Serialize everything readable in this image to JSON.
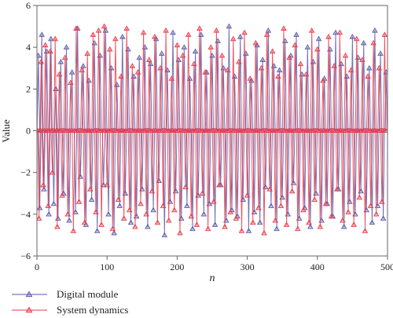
{
  "chart_data": {
    "type": "line",
    "xlabel": "n",
    "ylabel": "Value",
    "xlim": [
      0,
      500
    ],
    "ylim": [
      -6,
      6
    ],
    "x_ticks": [
      0,
      100,
      200,
      300,
      400,
      500
    ],
    "y_ticks": [
      -6,
      -4,
      -2,
      0,
      2,
      4,
      6
    ],
    "grid": false,
    "legend_position": "bottom-left",
    "series": [
      {
        "name": "Digital module",
        "color": "#5a5aaa",
        "marker": "triangle-up",
        "x": [
          2,
          4,
          7,
          10,
          14,
          17,
          20,
          24,
          27,
          30,
          34,
          38,
          42,
          46,
          50,
          55,
          58,
          62,
          66,
          70,
          74,
          78,
          82,
          86,
          90,
          95,
          98,
          102,
          106,
          110,
          114,
          118,
          122,
          126,
          130,
          134,
          138,
          142,
          146,
          150,
          154,
          158,
          162,
          166,
          170,
          174,
          178,
          182,
          186,
          190,
          194,
          198,
          202,
          206,
          210,
          214,
          218,
          222,
          226,
          230,
          234,
          238,
          242,
          246,
          250,
          254,
          258,
          262,
          266,
          270,
          274,
          278,
          282,
          286,
          290,
          294,
          298,
          302,
          306,
          310,
          314,
          318,
          322,
          326,
          330,
          334,
          338,
          342,
          346,
          350,
          354,
          358,
          362,
          366,
          370,
          374,
          378,
          382,
          386,
          390,
          394,
          398,
          402,
          406,
          410,
          414,
          418,
          422,
          426,
          430,
          434,
          438,
          442,
          446,
          450,
          454,
          458,
          462,
          466,
          470,
          474,
          478,
          482,
          486,
          490,
          494,
          498
        ],
        "values": [
          3.6,
          -3.7,
          4.6,
          -2.8,
          3.8,
          -4.0,
          4.4,
          -3.5,
          2.0,
          -4.2,
          3.3,
          -3.0,
          4.0,
          -4.3,
          2.8,
          -3.9,
          4.9,
          -2.2,
          3.1,
          -4.5,
          2.4,
          -3.3,
          4.2,
          -4.8,
          3.6,
          -2.6,
          4.8,
          -4.0,
          3.0,
          -4.9,
          2.2,
          -3.6,
          4.5,
          -3.0,
          3.9,
          -4.4,
          2.6,
          -4.1,
          3.5,
          -2.8,
          4.0,
          -4.6,
          3.2,
          -3.8,
          4.4,
          -2.4,
          3.7,
          -5.0,
          2.9,
          -3.4,
          4.7,
          -2.9,
          3.4,
          -4.2,
          4.0,
          -3.6,
          2.5,
          -4.7,
          3.8,
          -3.1,
          4.6,
          -4.0,
          2.8,
          -3.5,
          3.6,
          -4.5,
          4.3,
          -2.6,
          3.0,
          -4.3,
          5.0,
          -3.8,
          2.6,
          -4.1,
          4.5,
          -3.3,
          3.7,
          -4.8,
          2.4,
          -3.9,
          4.1,
          -4.4,
          3.4,
          -2.7,
          4.8,
          -3.6,
          3.1,
          -4.7,
          2.9,
          -3.2,
          4.3,
          -4.0,
          3.6,
          -2.5,
          4.6,
          -4.2,
          2.7,
          -3.7,
          4.0,
          -4.6,
          3.3,
          -3.0,
          4.4,
          -4.3,
          2.5,
          -3.5,
          3.9,
          -4.1,
          4.7,
          -2.8,
          3.2,
          -4.6,
          2.6,
          -3.4,
          4.5,
          -4.0,
          3.5,
          -2.9,
          4.2,
          -3.8,
          3.0,
          -4.4,
          4.8,
          -3.6,
          3.7,
          -4.2,
          2.8
        ]
      },
      {
        "name": "System dynamics",
        "color": "#e83a48",
        "marker": "triangle-up",
        "x": [
          3,
          6,
          9,
          12,
          16,
          19,
          22,
          26,
          29,
          32,
          36,
          40,
          44,
          48,
          52,
          56,
          60,
          64,
          68,
          72,
          76,
          80,
          84,
          88,
          92,
          96,
          100,
          104,
          108,
          112,
          116,
          120,
          124,
          128,
          132,
          136,
          140,
          144,
          148,
          152,
          156,
          160,
          164,
          168,
          172,
          176,
          180,
          184,
          188,
          192,
          196,
          200,
          204,
          208,
          212,
          216,
          220,
          224,
          228,
          232,
          236,
          240,
          244,
          248,
          252,
          256,
          260,
          264,
          268,
          272,
          276,
          280,
          284,
          288,
          292,
          296,
          300,
          304,
          308,
          312,
          316,
          320,
          324,
          328,
          332,
          336,
          340,
          344,
          348,
          352,
          356,
          360,
          364,
          368,
          372,
          376,
          380,
          384,
          388,
          392,
          396,
          400,
          404,
          408,
          412,
          416,
          420,
          424,
          428,
          432,
          436,
          440,
          444,
          448,
          452,
          456,
          460,
          464,
          468,
          472,
          476,
          480,
          484,
          488,
          492,
          496
        ],
        "values": [
          -4.2,
          3.3,
          -2.6,
          4.1,
          -3.6,
          3.8,
          -2.0,
          4.4,
          -4.6,
          2.7,
          -3.1,
          3.5,
          -4.0,
          2.3,
          -4.8,
          4.9,
          -3.4,
          2.9,
          -4.4,
          3.7,
          -2.8,
          4.6,
          -3.9,
          4.8,
          -4.5,
          5.0,
          -2.6,
          3.9,
          -4.7,
          4.4,
          -3.3,
          2.6,
          -4.2,
          4.9,
          -3.8,
          3.1,
          -4.6,
          2.8,
          -3.5,
          4.7,
          -4.0,
          3.4,
          -2.9,
          4.5,
          -4.4,
          3.0,
          -3.6,
          4.8,
          -4.3,
          2.5,
          -3.8,
          4.1,
          -4.9,
          3.6,
          -2.7,
          4.6,
          -4.1,
          3.2,
          -4.5,
          4.9,
          -3.0,
          2.8,
          -4.7,
          4.0,
          -3.4,
          4.8,
          -2.6,
          3.6,
          -4.6,
          2.9,
          -3.9,
          4.4,
          -4.2,
          3.3,
          -4.8,
          4.7,
          -3.1,
          2.5,
          -4.4,
          4.2,
          -3.7,
          3.0,
          -4.9,
          4.6,
          -2.8,
          3.8,
          -4.3,
          2.6,
          -3.6,
          4.9,
          -4.5,
          3.5,
          -2.9,
          4.1,
          -4.7,
          3.2,
          -3.8,
          2.7,
          -4.4,
          4.8,
          -3.3,
          3.9,
          -4.6,
          2.4,
          -3.5,
          4.5,
          -4.1,
          3.1,
          -2.8,
          4.7,
          -4.3,
          3.6,
          -3.9,
          2.9,
          -4.5,
          4.4,
          -3.2,
          3.4,
          -4.8,
          2.6,
          -3.6,
          4.2,
          -4.0,
          3.0,
          -3.4,
          4.6
        ]
      }
    ]
  }
}
